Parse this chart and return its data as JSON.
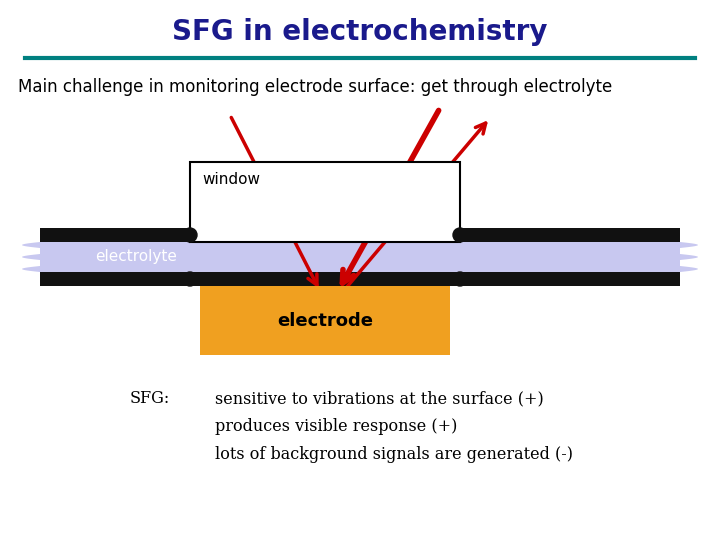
{
  "title": "SFG in electrochemistry",
  "title_color": "#1a1a8c",
  "title_fontsize": 20,
  "underline_color": "#008080",
  "subtitle": "Main challenge in monitoring electrode surface: get through electrolyte",
  "subtitle_fontsize": 12,
  "bg_color": "#ffffff",
  "window_color": "#ffffff",
  "window_border": "#000000",
  "electrolyte_color": "#c8c8f0",
  "electrode_color": "#f0a020",
  "bar_color": "#111111",
  "window_label": "window",
  "window_label_color": "#000000",
  "electrolyte_label": "electrolyte",
  "electrolyte_label_color": "#ffffff",
  "electrode_label": "electrode",
  "electrode_label_color": "#000000",
  "arrow_color": "#cc0000",
  "sfg_label": "SFG:",
  "sfg_text_lines": [
    "sensitive to vibrations at the surface (+)",
    "produces visible response (+)",
    "lots of background signals are generated (-)"
  ],
  "sfg_fontsize": 11.5
}
